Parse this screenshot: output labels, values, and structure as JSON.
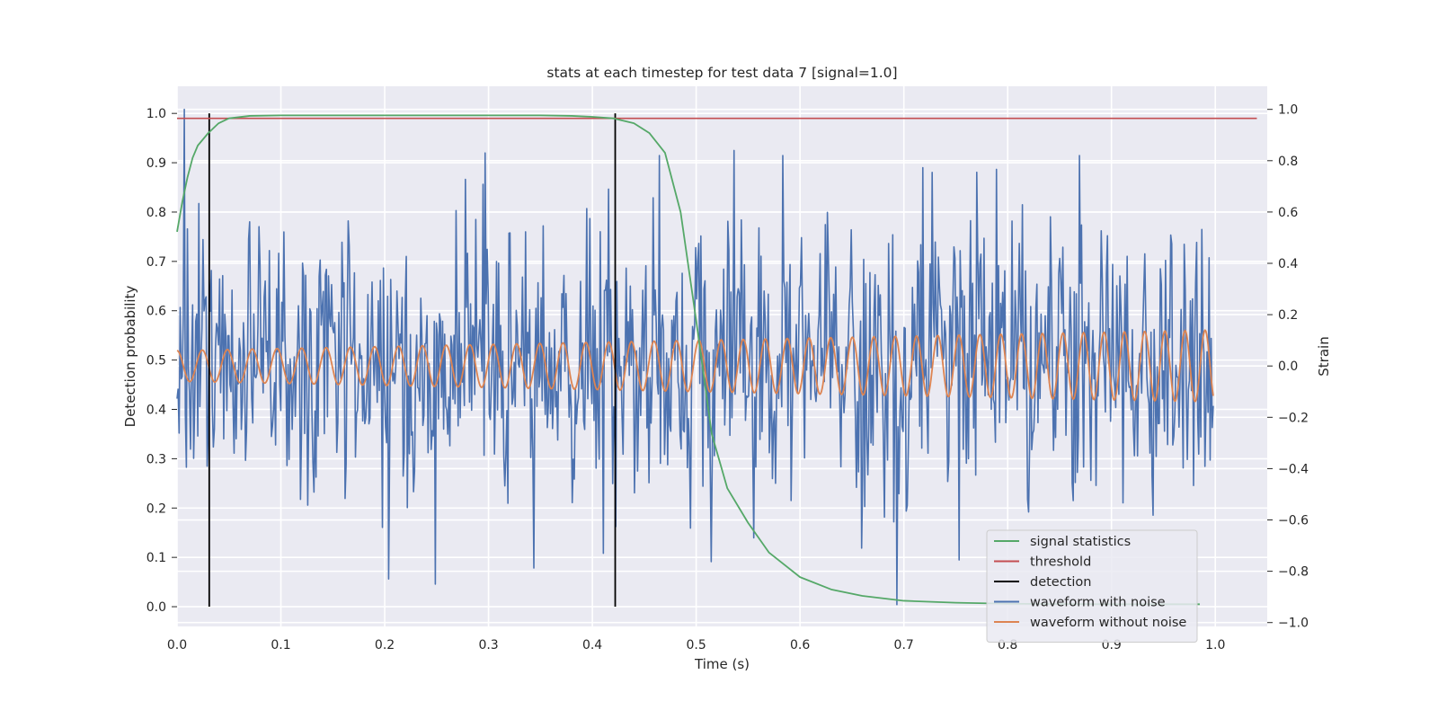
{
  "chart_data": {
    "type": "line",
    "title": "stats at each timestep for test data 7 [signal=1.0]",
    "xlabel": "Time (s)",
    "ylabel_left": "Detection probability",
    "ylabel_right": "Strain",
    "xlim": [
      0.0,
      1.05
    ],
    "ylim_left": [
      -0.04,
      1.055
    ],
    "ylim_right": [
      -1.015,
      1.09
    ],
    "x_ticks": [
      0.0,
      0.1,
      0.2,
      0.3,
      0.4,
      0.5,
      0.6,
      0.7,
      0.8,
      0.9,
      1.0
    ],
    "x_tick_labels": [
      "0.0",
      "0.1",
      "0.2",
      "0.3",
      "0.4",
      "0.5",
      "0.6",
      "0.7",
      "0.8",
      "0.9",
      "1.0"
    ],
    "y_left_ticks": [
      0.0,
      0.1,
      0.2,
      0.3,
      0.4,
      0.5,
      0.6,
      0.7,
      0.8,
      0.9,
      1.0
    ],
    "y_left_tick_labels": [
      "0.0",
      "0.1",
      "0.2",
      "0.3",
      "0.4",
      "0.5",
      "0.6",
      "0.7",
      "0.8",
      "0.9",
      "1.0"
    ],
    "y_right_ticks": [
      -1.0,
      -0.8,
      -0.6,
      -0.4,
      -0.2,
      0.0,
      0.2,
      0.4,
      0.6,
      0.8,
      1.0
    ],
    "y_right_tick_labels": [
      "−1.0",
      "−0.8",
      "−0.6",
      "−0.4",
      "−0.2",
      "0.0",
      "0.2",
      "0.4",
      "0.6",
      "0.8",
      "1.0"
    ],
    "grid": true,
    "legend_position": "lower-right",
    "series": [
      {
        "name": "signal statistics",
        "axis": "left",
        "color": "#55a868",
        "x": [
          0.0,
          0.005,
          0.01,
          0.015,
          0.02,
          0.03,
          0.04,
          0.05,
          0.07,
          0.1,
          0.2,
          0.3,
          0.35,
          0.38,
          0.4,
          0.42,
          0.44,
          0.455,
          0.47,
          0.485,
          0.5,
          0.515,
          0.53,
          0.55,
          0.57,
          0.6,
          0.63,
          0.66,
          0.7,
          0.75,
          0.8,
          0.9,
          0.985
        ],
        "y": [
          0.76,
          0.82,
          0.87,
          0.91,
          0.935,
          0.96,
          0.98,
          0.99,
          0.995,
          0.996,
          0.996,
          0.996,
          0.996,
          0.995,
          0.993,
          0.99,
          0.98,
          0.96,
          0.92,
          0.8,
          0.58,
          0.35,
          0.24,
          0.17,
          0.11,
          0.06,
          0.035,
          0.022,
          0.012,
          0.008,
          0.006,
          0.005,
          0.005
        ]
      },
      {
        "name": "threshold",
        "axis": "left",
        "color": "#c44e52",
        "x": [
          0.0,
          1.04
        ],
        "y": [
          0.99,
          0.99
        ]
      },
      {
        "name": "detection",
        "axis": "left",
        "color": "#000000",
        "segments": [
          {
            "x": 0.031,
            "y0": 0.0,
            "y1": 1.0
          },
          {
            "x": 0.422,
            "y0": 0.0,
            "y1": 1.0
          }
        ]
      },
      {
        "name": "waveform with noise",
        "axis": "right",
        "color": "#4c72b0",
        "x_range": [
          0.0,
          0.998
        ],
        "n_points": 1000,
        "noise_std": 0.27,
        "notable_points": [
          {
            "x": 0.007,
            "y": 1.0
          },
          {
            "x": 0.297,
            "y": 0.83
          },
          {
            "x": 0.536,
            "y": 0.84
          },
          {
            "x": 0.204,
            "y": -0.83
          },
          {
            "x": 0.411,
            "y": -0.73
          },
          {
            "x": 0.693,
            "y": -0.93
          }
        ]
      },
      {
        "name": "waveform without noise",
        "axis": "right",
        "color": "#dd8452",
        "x_range": [
          0.0,
          0.998
        ],
        "amplitude_start": 0.06,
        "amplitude_end": 0.14,
        "frequency_start_hz": 41,
        "frequency_end_hz": 52
      }
    ]
  },
  "legend": {
    "items": [
      {
        "label": "signal statistics",
        "color": "#55a868"
      },
      {
        "label": "threshold",
        "color": "#c44e52"
      },
      {
        "label": "detection",
        "color": "#000000"
      },
      {
        "label": "waveform with noise",
        "color": "#4c72b0"
      },
      {
        "label": "waveform without noise",
        "color": "#dd8452"
      }
    ]
  },
  "style": {
    "plot_background": "#eaeaf2",
    "grid_color": "#ffffff",
    "text_color": "#262626"
  }
}
